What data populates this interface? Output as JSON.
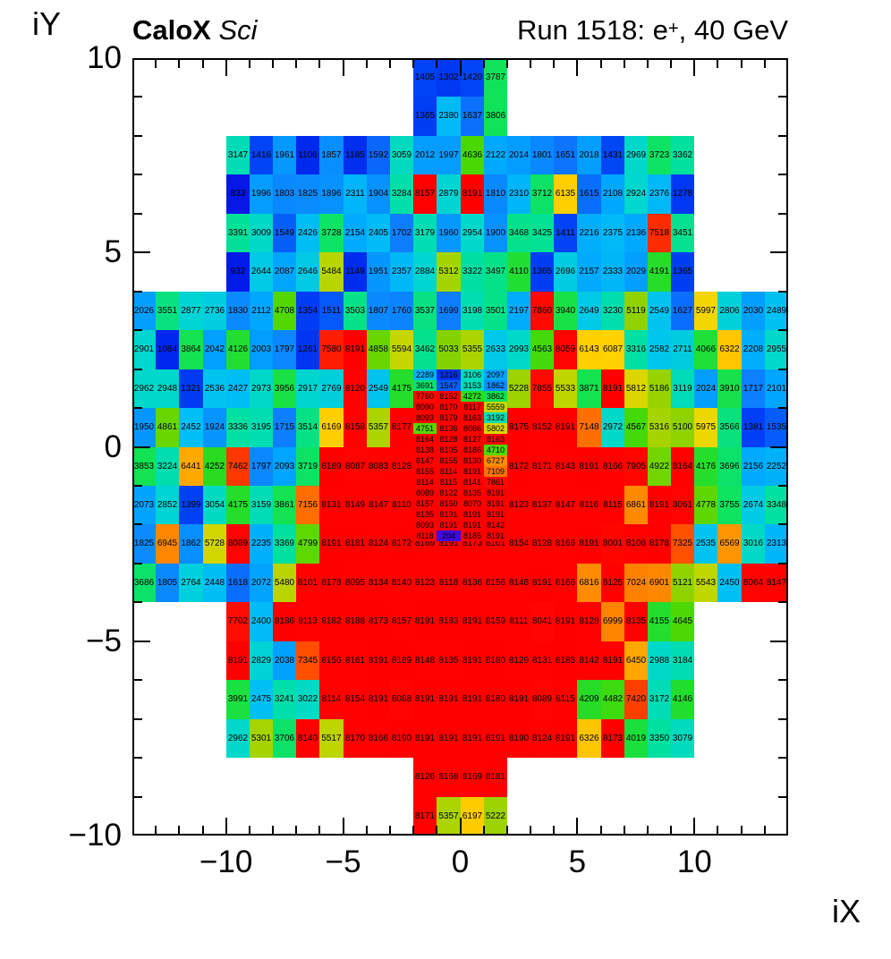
{
  "header": {
    "experiment": "CaloX",
    "experiment_style": " Sci",
    "run_title_pre": "Run 1518: e",
    "run_title_sup": "+",
    "run_title_post": ", 40 GeV"
  },
  "axes": {
    "x_title": "iX",
    "y_title": "iY",
    "x_tick_values": [
      -10,
      -5,
      0,
      5,
      10
    ],
    "x_tick_labels": [
      "−10",
      "−5",
      "0",
      "5",
      "10"
    ],
    "y_tick_values": [
      10,
      5,
      0,
      -5,
      -10
    ],
    "y_tick_labels": [
      "10",
      "5",
      "0",
      "−5",
      "−10"
    ]
  },
  "chart_data": {
    "type": "heatmap",
    "title": "Run 1518: e+, 40 GeV",
    "subtitle": "CaloX Sci",
    "xlabel": "iX",
    "ylabel": "iY",
    "x_range": [
      -14,
      14
    ],
    "y_range": [
      -10,
      10
    ],
    "z_range": [
      0,
      8191
    ],
    "palette": "root-rainbow",
    "palette_stops": [
      [
        0,
        "#4000dd"
      ],
      [
        204,
        "#3c0be0"
      ],
      [
        900,
        "#0018e8"
      ],
      [
        1400,
        "#0041f5"
      ],
      [
        1700,
        "#0e7eff"
      ],
      [
        2100,
        "#00a6ff"
      ],
      [
        2500,
        "#00c2f2"
      ],
      [
        2950,
        "#00d8cc"
      ],
      [
        3350,
        "#00e0a0"
      ],
      [
        3800,
        "#10e358"
      ],
      [
        4300,
        "#2cdb1c"
      ],
      [
        4700,
        "#50d800"
      ],
      [
        5100,
        "#8ed200"
      ],
      [
        5600,
        "#c6d600"
      ],
      [
        5950,
        "#e8d600"
      ],
      [
        6050,
        "#ffd400"
      ],
      [
        6350,
        "#ffc400"
      ],
      [
        6500,
        "#ff9800"
      ],
      [
        7000,
        "#ff8400"
      ],
      [
        7250,
        "#ff6000"
      ],
      [
        7480,
        "#ff3400"
      ],
      [
        7650,
        "#ff0e00"
      ],
      [
        8191,
        "#ff0000"
      ]
    ],
    "main_grid": {
      "rows": [
        {
          "y": 9,
          "segments": [
            {
              "x0": -2,
              "values": [
                1405,
                1302,
                1420,
                3787
              ]
            }
          ]
        },
        {
          "y": 8,
          "segments": [
            {
              "x0": -2,
              "values": [
                1365,
                2380,
                1637,
                3806
              ]
            }
          ]
        },
        {
          "y": 7,
          "segments": [
            {
              "x0": -10,
              "values": [
                3147,
                1416,
                1961,
                1106,
                1857,
                1185,
                1592,
                3059,
                2012,
                1997,
                4636,
                2122,
                2014,
                1801,
                1651,
                2018,
                1431,
                2969,
                3723,
                3362
              ]
            }
          ]
        },
        {
          "y": 6,
          "segments": [
            {
              "x0": -10,
              "values": [
                833,
                1996,
                1803,
                1825,
                1896,
                2311,
                1904,
                3284,
                8157,
                2879,
                8191,
                1810,
                2310,
                3712,
                6135,
                1615,
                2108,
                2924,
                2376,
                1278
              ]
            }
          ]
        },
        {
          "y": 5,
          "segments": [
            {
              "x0": -10,
              "values": [
                3391,
                3009,
                1549,
                2426,
                3728,
                2154,
                2405,
                1702,
                3179,
                1960,
                2954,
                1900,
                3468,
                3425,
                1411,
                2216,
                2375,
                2136,
                7518,
                3451
              ]
            }
          ]
        },
        {
          "y": 4,
          "segments": [
            {
              "x0": -10,
              "values": [
                932,
                2644,
                2087,
                2646,
                5484,
                1149,
                1951,
                2357,
                2884,
                5312,
                3322,
                3497,
                4110,
                1365,
                2696,
                2157,
                2333,
                2029,
                4191,
                1365
              ]
            }
          ]
        },
        {
          "y": 3,
          "segments": [
            {
              "x0": -14,
              "values": [
                2026,
                3551,
                2877,
                2736,
                1830,
                2112,
                4708,
                1354,
                1511,
                3503,
                1807,
                1760,
                3537,
                1699,
                3198,
                3501,
                2197,
                7860,
                3940,
                2649,
                3230,
                5119,
                2549,
                1627,
                5997,
                2806,
                2030,
                2489
              ]
            }
          ]
        },
        {
          "y": 2,
          "segments": [
            {
              "x0": -14,
              "values": [
                2901,
                1084,
                3864,
                2042,
                4126,
                2003,
                1797,
                1261,
                7580,
                8191,
                4858,
                5594,
                3462,
                5033,
                5355,
                2633,
                2993,
                4563,
                8059,
                6143,
                6087,
                3316,
                2582,
                2711,
                4066,
                6322,
                2208,
                2955
              ]
            }
          ]
        },
        {
          "y": 1,
          "segments": [
            {
              "x0": -14,
              "values": [
                2962,
                2948,
                1321,
                2536,
                2427,
                2973,
                3956,
                2917,
                2769,
                8120,
                2549,
                4175
              ]
            },
            {
              "x0": 2,
              "values": [
                5228,
                7855,
                5533,
                3871,
                8191,
                5812,
                5186,
                3119,
                2024,
                3910,
                1717,
                2101
              ]
            }
          ]
        },
        {
          "y": 0,
          "segments": [
            {
              "x0": -14,
              "values": [
                1950,
                4861,
                2452,
                1924,
                3336,
                3195,
                1715,
                3514,
                6169,
                8158,
                5357,
                8177
              ]
            },
            {
              "x0": 2,
              "values": [
                8175,
                8152,
                8191,
                7148,
                2972,
                4567,
                5316,
                5100,
                5975,
                3566,
                1381,
                1535
              ]
            }
          ]
        },
        {
          "y": -1,
          "segments": [
            {
              "x0": -14,
              "values": [
                3853,
                3224,
                6441,
                4252,
                7462,
                1797,
                2093,
                3719,
                8189,
                8087,
                8083,
                8128
              ]
            },
            {
              "x0": 2,
              "values": [
                8172,
                8171,
                8143,
                8191,
                8166,
                7905,
                4922,
                8164,
                4176,
                3696,
                2156,
                2252
              ]
            }
          ]
        },
        {
          "y": -2,
          "segments": [
            {
              "x0": -14,
              "values": [
                2073,
                2852,
                1399,
                3054,
                4175,
                3159,
                3861,
                7156,
                8131,
                8149,
                8147,
                8110
              ]
            },
            {
              "x0": 2,
              "values": [
                8123,
                8137,
                8147,
                8116,
                8115,
                6861,
                8191,
                8061,
                4778,
                3755,
                2674,
                3348
              ]
            }
          ]
        },
        {
          "y": -3,
          "segments": [
            {
              "x0": -14,
              "values": [
                1825,
                6945,
                1862,
                5728,
                8089,
                2235,
                3369,
                4799,
                8191,
                8181,
                8124,
                8172,
                8169,
                8191,
                8173,
                8101,
                8154,
                8128,
                8166,
                8191,
                8001,
                8106,
                8178,
                7325,
                2535,
                6569,
                3016,
                2313
              ]
            }
          ]
        },
        {
          "y": -4,
          "segments": [
            {
              "x0": -14,
              "values": [
                3686,
                1805,
                2764,
                2448,
                1618,
                2072,
                5480,
                8101,
                8178,
                8095,
                8134,
                8140,
                8123,
                8118,
                8136,
                8156,
                8148,
                8191,
                8166,
                6816,
                8125,
                7024,
                6901,
                5121,
                5543,
                2450,
                8064,
                8147
              ]
            }
          ]
        },
        {
          "y": -5,
          "segments": [
            {
              "x0": -10,
              "values": [
                7702,
                2400,
                8186,
                8113,
                8182,
                8188,
                8173,
                8157,
                8191,
                8183,
                8191,
                8159,
                8111,
                8041,
                8191,
                8128,
                6999,
                8135,
                4155,
                4645
              ]
            }
          ]
        },
        {
          "y": -6,
          "segments": [
            {
              "x0": -10,
              "values": [
                8191,
                2829,
                2038,
                7345,
                8156,
                8161,
                8191,
                8189,
                8148,
                8135,
                8191,
                8180,
                8129,
                8131,
                8185,
                8142,
                8191,
                6450,
                2988,
                3184
              ]
            }
          ]
        },
        {
          "y": -7,
          "segments": [
            {
              "x0": -10,
              "values": [
                3991,
                2475,
                3241,
                3022,
                8114,
                8154,
                8191,
                8088,
                8191,
                8191,
                8191,
                8180,
                8191,
                8089,
                8115,
                4209,
                4482,
                7420,
                3172,
                4146
              ]
            }
          ]
        },
        {
          "y": -8,
          "segments": [
            {
              "x0": -10,
              "values": [
                2962,
                5301,
                3706,
                8140,
                5517,
                8170,
                8166,
                8190,
                8191,
                8191,
                8191,
                8191,
                8190,
                8124,
                8191,
                6326,
                8173,
                4019,
                3350,
                3079
              ]
            }
          ]
        },
        {
          "y": -9,
          "segments": [
            {
              "x0": -2,
              "values": [
                8126,
                8168,
                8169,
                8181
              ]
            }
          ]
        },
        {
          "y": -10,
          "segments": [
            {
              "x0": -2,
              "values": [
                8171,
                5357,
                6197,
                5222
              ]
            }
          ]
        }
      ]
    },
    "fine_grid": {
      "x0": -2,
      "cols": 4,
      "y_top": 2.0,
      "row_h": 0.2765,
      "rows": [
        [
          2289,
          1216,
          3106,
          2097
        ],
        [
          3691,
          1547,
          3153,
          1862
        ],
        [
          7760,
          8152,
          4272,
          3862
        ],
        [
          8090,
          8170,
          8117,
          5559
        ],
        [
          8093,
          8179,
          8163,
          3192
        ],
        [
          4751,
          8136,
          8086,
          5802
        ],
        [
          8164,
          8128,
          8127,
          8163
        ],
        [
          8138,
          8105,
          8186,
          4710
        ],
        [
          8147,
          8155,
          8130,
          6727
        ],
        [
          8155,
          8114,
          8191,
          7109
        ],
        [
          8114,
          8115,
          8141,
          7861
        ],
        [
          8089,
          8122,
          8135,
          8191
        ],
        [
          8157,
          8150,
          8070,
          8191
        ],
        [
          8135,
          8191,
          8191,
          8191
        ],
        [
          8093,
          8191,
          8191,
          8142
        ],
        [
          8118,
          204,
          8185,
          8191
        ]
      ]
    }
  }
}
